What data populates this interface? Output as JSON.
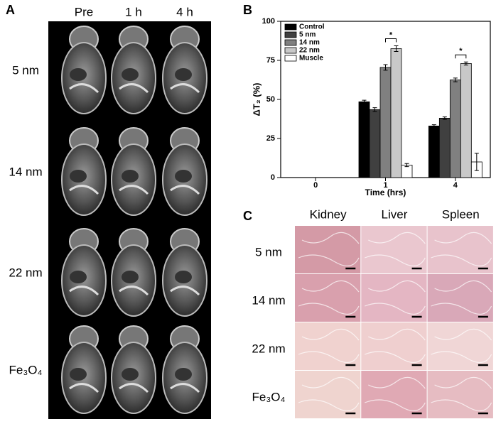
{
  "panels": {
    "a": "A",
    "b": "B",
    "c": "C"
  },
  "mri": {
    "columns": [
      "Pre",
      "1 h",
      "4 h"
    ],
    "rows": [
      "5 nm",
      "14 nm",
      "22 nm",
      "Fe₃O₄"
    ]
  },
  "histology": {
    "columns": [
      "Kidney",
      "Liver",
      "Spleen"
    ],
    "rows": [
      "5 nm",
      "14 nm",
      "22 nm",
      "Fe₃O₄"
    ]
  },
  "chart_data": {
    "type": "bar",
    "x_label": "Time (hrs)",
    "y_label": "ΔT₂ (%)",
    "categories": [
      "0",
      "1",
      "4"
    ],
    "series": [
      {
        "name": "Control",
        "color": "#000000",
        "values": [
          null,
          48.5,
          33
        ],
        "errors": [
          null,
          1,
          0.8
        ]
      },
      {
        "name": "5 nm",
        "color": "#404040",
        "values": [
          null,
          43.5,
          38
        ],
        "errors": [
          null,
          1.2,
          0.8
        ]
      },
      {
        "name": "14 nm",
        "color": "#808080",
        "values": [
          null,
          70.5,
          62.5
        ],
        "errors": [
          null,
          1.8,
          1.2
        ]
      },
      {
        "name": "22 nm",
        "color": "#c8c8c8",
        "values": [
          null,
          82.5,
          73
        ],
        "errors": [
          null,
          1.8,
          1
        ]
      },
      {
        "name": "Muscle",
        "color": "#ffffff",
        "values": [
          null,
          8,
          10
        ],
        "errors": [
          null,
          1,
          5.5
        ]
      }
    ],
    "annotations": [
      "*",
      "*"
    ],
    "ylim": [
      0,
      100
    ],
    "yticks": [
      0,
      25,
      50,
      75,
      100
    ],
    "legend": "upper left"
  }
}
